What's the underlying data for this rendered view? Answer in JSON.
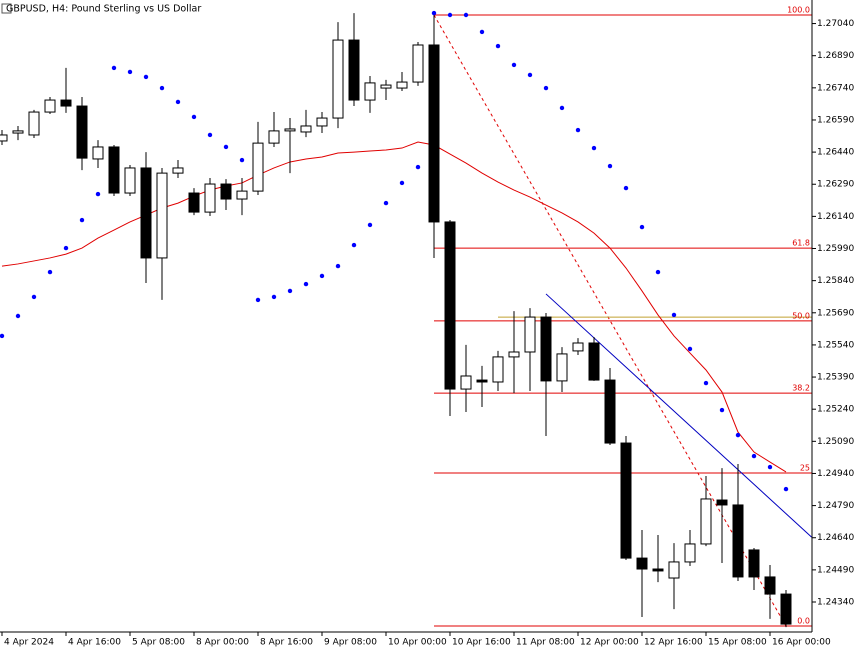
{
  "chart_data": {
    "type": "candlestick",
    "title": "GBPUSD, H4:  Pound Sterling vs US Dollar",
    "categories": [
      "4 Apr 2024",
      null,
      null,
      null,
      "4 Apr 16:00",
      null,
      null,
      null,
      "5 Apr 08:00",
      null,
      null,
      null,
      "8 Apr 00:00",
      null,
      null,
      null,
      "8 Apr 16:00",
      null,
      null,
      null,
      "9 Apr 08:00",
      null,
      null,
      null,
      "10 Apr 00:00",
      null,
      null,
      null,
      "10 Apr 16:00",
      null,
      null,
      null,
      "11 Apr 08:00",
      null,
      null,
      null,
      "12 Apr 00:00",
      null,
      null,
      null,
      "12 Apr 16:00",
      null,
      null,
      null,
      "15 Apr 08:00",
      null,
      null,
      null,
      "16 Apr 00:00",
      null
    ],
    "open": [
      1.26492,
      1.26529,
      1.2652,
      1.26627,
      1.26683,
      1.26655,
      1.26408,
      1.26464,
      1.26249,
      1.26366,
      1.25946,
      1.26342,
      1.26249,
      1.2616,
      1.26291,
      1.26221,
      1.26258,
      1.26482,
      1.26539,
      1.26534,
      1.26562,
      1.26599,
      1.26963,
      1.26683,
      1.26739,
      1.26739,
      1.26767,
      1.2694,
      1.26114,
      1.25334,
      1.25376,
      1.25367,
      1.25484,
      1.25507,
      1.2567,
      1.25372,
      1.25512,
      1.25549,
      1.25376,
      1.25082,
      1.24545,
      1.24494,
      1.24452,
      1.24527,
      1.24611,
      1.24816,
      1.24793,
      1.24583,
      1.24457,
      1.24377
    ],
    "high": [
      1.26543,
      1.26562,
      1.26637,
      1.26697,
      1.26833,
      1.26697,
      1.26496,
      1.26473,
      1.2638,
      1.2644,
      1.26366,
      1.26403,
      1.26272,
      1.26319,
      1.26314,
      1.26319,
      1.26581,
      1.26627,
      1.26599,
      1.26637,
      1.26627,
      1.27047,
      1.27089,
      1.26795,
      1.26777,
      1.26814,
      1.26954,
      1.27089,
      1.26123,
      1.2554,
      1.25442,
      1.25512,
      1.25698,
      1.25712,
      1.25689,
      1.2553,
      1.25572,
      1.25577,
      1.25432,
      1.25115,
      1.24676,
      1.24653,
      1.24615,
      1.24676,
      1.24928,
      1.24965,
      1.24984,
      1.24592,
      1.24513,
      1.24396
    ],
    "low": [
      1.26473,
      1.26496,
      1.26506,
      1.26618,
      1.26623,
      1.26356,
      1.26366,
      1.26235,
      1.26235,
      1.25829,
      1.2575,
      1.26319,
      1.26146,
      1.26142,
      1.2617,
      1.26146,
      1.2624,
      1.26464,
      1.26342,
      1.2651,
      1.26529,
      1.26552,
      1.26655,
      1.26623,
      1.26683,
      1.26725,
      1.26749,
      1.25946,
      1.25208,
      1.25227,
      1.2525,
      1.25325,
      1.25315,
      1.25325,
      1.25115,
      1.2532,
      1.25493,
      1.25372,
      1.25073,
      1.24536,
      1.2427,
      1.24433,
      1.24307,
      1.24508,
      1.24601,
      1.24522,
      1.24438,
      1.24396,
      1.24261,
      1.24223
    ],
    "close": [
      1.2652,
      1.26539,
      1.26627,
      1.26683,
      1.26655,
      1.26412,
      1.26464,
      1.26249,
      1.26366,
      1.25946,
      1.26342,
      1.26366,
      1.2616,
      1.26291,
      1.26221,
      1.26258,
      1.26482,
      1.26539,
      1.26548,
      1.26562,
      1.26599,
      1.26963,
      1.26683,
      1.26763,
      1.26753,
      1.26767,
      1.2694,
      1.26114,
      1.25334,
      1.25395,
      1.25367,
      1.25484,
      1.25507,
      1.2567,
      1.25372,
      1.25498,
      1.25549,
      1.25376,
      1.25082,
      1.24545,
      1.24494,
      1.24485,
      1.24527,
      1.24611,
      1.24821,
      1.24793,
      1.24457,
      1.24457,
      1.24377,
      1.24237
    ],
    "up_color": "#ffffff",
    "down_color": "#000000",
    "sar": {
      "color": "#0000ff",
      "values": [
        1.25582,
        1.25675,
        1.25764,
        1.2588,
        1.25992,
        1.26123,
        1.26244,
        1.26833,
        1.26814,
        1.26791,
        1.26739,
        1.26674,
        1.26604,
        1.2652,
        1.26464,
        1.26403,
        1.2575,
        1.25764,
        1.25792,
        1.25824,
        1.25862,
        1.25908,
        1.26006,
        1.261,
        1.26202,
        1.26296,
        1.2637,
        1.27089,
        1.2708,
        1.2708,
        1.27001,
        1.26935,
        1.26847,
        1.268,
        1.26739,
        1.26646,
        1.26543,
        1.26459,
        1.26375,
        1.26272,
        1.2609,
        1.2588,
        1.2568,
        1.25521,
        1.25362,
        1.25236,
        1.25119,
        1.25021,
        1.2497,
        1.24867
      ]
    },
    "ma": {
      "color": "#e00000",
      "values": [
        1.25908,
        1.25918,
        1.25932,
        1.25946,
        1.25964,
        1.25992,
        1.26039,
        1.26076,
        1.26114,
        1.26146,
        1.26179,
        1.26202,
        1.26235,
        1.26263,
        1.26282,
        1.26296,
        1.26333,
        1.26366,
        1.26394,
        1.26408,
        1.26417,
        1.26436,
        1.2644,
        1.26445,
        1.2645,
        1.26459,
        1.26487,
        1.26473,
        1.26431,
        1.26389,
        1.26342,
        1.263,
        1.26263,
        1.2623,
        1.26193,
        1.26156,
        1.26114,
        1.26062,
        1.25992,
        1.25899,
        1.25792,
        1.2568,
        1.25582,
        1.25502,
        1.25423,
        1.2532,
        1.25133,
        1.2504,
        1.24993,
        1.24947
      ]
    },
    "fibo": {
      "color": "#e00000",
      "x": [
        27,
        49
      ],
      "labels": [
        "100.0",
        "61.8",
        "50.0",
        "38.2",
        "25",
        "0.0"
      ],
      "values": [
        1.2708,
        1.25992,
        1.25652,
        1.25315,
        1.24942,
        1.24228
      ]
    },
    "trendline": {
      "color": "#0000c0",
      "x": [
        34,
        50.6
      ],
      "y": [
        1.25778,
        1.24643
      ]
    },
    "hline": {
      "color": "#c0a030",
      "x": 31,
      "value": 1.2567
    },
    "ylim": [
      1.242,
      1.2715
    ],
    "yticks": [
      {
        "value": 1.2704,
        "label": "1.27040"
      },
      {
        "value": 1.2689,
        "label": "1.26890"
      },
      {
        "value": 1.2674,
        "label": "1.26740"
      },
      {
        "value": 1.2659,
        "label": "1.26590"
      },
      {
        "value": 1.2644,
        "label": "1.26440"
      },
      {
        "value": 1.2629,
        "label": "1.26290"
      },
      {
        "value": 1.2614,
        "label": "1.26140"
      },
      {
        "value": 1.2599,
        "label": "1.25990"
      },
      {
        "value": 1.2584,
        "label": "1.25840"
      },
      {
        "value": 1.2569,
        "label": "1.25690"
      },
      {
        "value": 1.2554,
        "label": "1.25540"
      },
      {
        "value": 1.2539,
        "label": "1.25390"
      },
      {
        "value": 1.2524,
        "label": "1.25240"
      },
      {
        "value": 1.2509,
        "label": "1.25090"
      },
      {
        "value": 1.2494,
        "label": "1.24940"
      },
      {
        "value": 1.2479,
        "label": "1.24790"
      },
      {
        "value": 1.2464,
        "label": "1.24640"
      },
      {
        "value": 1.2449,
        "label": "1.24490"
      },
      {
        "value": 1.2434,
        "label": "1.24340"
      }
    ]
  }
}
